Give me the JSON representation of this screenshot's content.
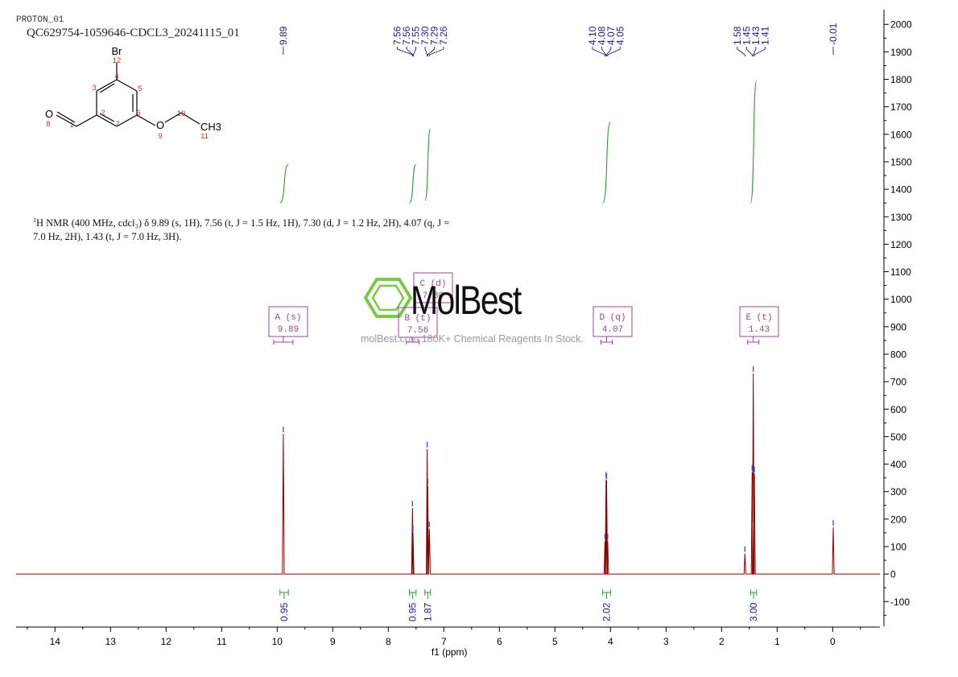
{
  "header": {
    "experiment": "PROTON_01",
    "sample_id": "QC629754-1059646-CDCL3_20241115_01"
  },
  "nmr_description": {
    "nucleus_prefix": "1",
    "text_line1": "H NMR (400 MHz, cdcl₃) δ 9.89 (s, 1H), 7.56 (t, J = 1.5 Hz, 1H), 7.30 (d, J = 1.2 Hz, 2H), 4.07 (q, J =",
    "text_line2": "7.0 Hz, 2H), 1.43 (t, J = 7.0 Hz, 3H)."
  },
  "structure": {
    "atoms": [
      "Br",
      "O",
      "O",
      "CH3"
    ],
    "numbers": [
      "1",
      "2",
      "3",
      "4",
      "5",
      "6",
      "7",
      "8",
      "9",
      "10",
      "11",
      "12"
    ]
  },
  "watermark": {
    "brand": "MolBest",
    "tagline": "molBest.com 180K+ Chemical Reagents In Stock.",
    "color": "#7ac943"
  },
  "colors": {
    "spectrum": "#8b0000",
    "integral": "#2e9a2e",
    "peak_label": "#1a1a8c",
    "multiplet_box": "#a0439a"
  },
  "chart_data": {
    "type": "line",
    "xlabel": "f1 (ppm)",
    "xlim": [
      14.7,
      -0.85
    ],
    "x_ticks": [
      14,
      13,
      12,
      11,
      10,
      9,
      8,
      7,
      6,
      5,
      4,
      3,
      2,
      1,
      0
    ],
    "ylim": [
      -190,
      2030
    ],
    "y_ticks": [
      2000,
      1900,
      1800,
      1700,
      1600,
      1500,
      1400,
      1300,
      1200,
      1100,
      1000,
      900,
      800,
      700,
      600,
      500,
      400,
      300,
      200,
      100,
      0,
      -100
    ],
    "peaks": [
      {
        "ppm": 9.89,
        "height": 510
      },
      {
        "ppm": 7.565,
        "height": 240
      },
      {
        "ppm": 7.555,
        "height": 150
      },
      {
        "ppm": 7.3,
        "height": 455
      },
      {
        "ppm": 7.29,
        "height": 320
      },
      {
        "ppm": 7.26,
        "height": 165
      },
      {
        "ppm": 4.1,
        "height": 120
      },
      {
        "ppm": 4.08,
        "height": 345
      },
      {
        "ppm": 4.07,
        "height": 340
      },
      {
        "ppm": 4.05,
        "height": 120
      },
      {
        "ppm": 1.58,
        "height": 75
      },
      {
        "ppm": 1.45,
        "height": 370
      },
      {
        "ppm": 1.43,
        "height": 730
      },
      {
        "ppm": 1.41,
        "height": 365
      },
      {
        "ppm": -0.01,
        "height": 170
      }
    ],
    "peak_label_groups": [
      {
        "labels": [
          "9.89"
        ],
        "ppms": [
          9.89
        ]
      },
      {
        "labels": [
          "7.56",
          "7.56",
          "7.55",
          "7.30",
          "7.29",
          "7.26"
        ],
        "ppms": [
          7.565,
          7.558,
          7.55,
          7.3,
          7.29,
          7.26
        ]
      },
      {
        "labels": [
          "4.10",
          "4.08",
          "4.07",
          "4.05"
        ],
        "ppms": [
          4.1,
          4.08,
          4.07,
          4.05
        ]
      },
      {
        "labels": [
          "1.58",
          "1.45",
          "1.43",
          "1.41"
        ],
        "ppms": [
          1.58,
          1.45,
          1.43,
          1.41
        ]
      },
      {
        "labels": [
          "-0.01"
        ],
        "ppms": [
          -0.01
        ]
      }
    ],
    "integrals": [
      {
        "value": "0.95",
        "from": 9.95,
        "to": 9.8,
        "curve_start": 1350,
        "curve_end": 1490
      },
      {
        "value": "0.95",
        "from": 7.62,
        "to": 7.5,
        "curve_start": 1350,
        "curve_end": 1490
      },
      {
        "value": "1.87",
        "from": 7.34,
        "to": 7.24,
        "curve_start": 1360,
        "curve_end": 1620
      },
      {
        "value": "2.02",
        "from": 4.14,
        "to": 4.0,
        "curve_start": 1350,
        "curve_end": 1645
      },
      {
        "value": "3.00",
        "from": 1.48,
        "to": 1.37,
        "curve_start": 1350,
        "curve_end": 1795
      }
    ],
    "multiplets": [
      {
        "label": "A (s)",
        "value": "9.89",
        "ppm": 9.89
      },
      {
        "label": "B (t)",
        "value": "7.56",
        "ppm": 7.56
      },
      {
        "label": "C (d)",
        "value": "7.30",
        "ppm": 7.3
      },
      {
        "label": "D (q)",
        "value": "4.07",
        "ppm": 4.07
      },
      {
        "label": "E (t)",
        "value": "1.43",
        "ppm": 1.43
      }
    ]
  }
}
